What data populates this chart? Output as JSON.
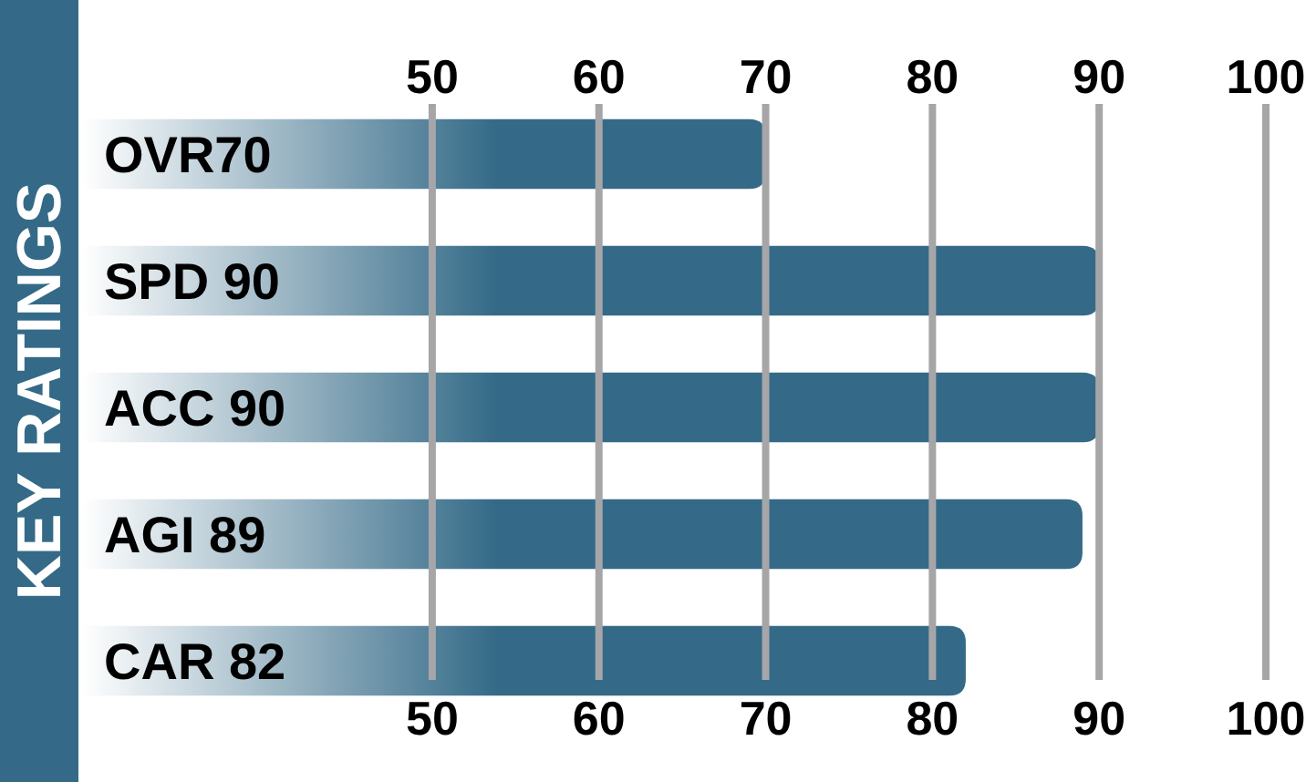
{
  "chart_data": {
    "type": "bar",
    "orientation": "horizontal",
    "title": "KEY RATINGS",
    "categories": [
      "OVR70",
      "SPD 90",
      "ACC 90",
      "AGI 89",
      "CAR 82"
    ],
    "values": [
      70,
      90,
      90,
      89,
      82
    ],
    "color": "#346a87",
    "xlim": [
      29,
      100
    ],
    "xticks": [
      50,
      60,
      70,
      80,
      90,
      100
    ],
    "x2lim": [
      29,
      100
    ],
    "x2ticks": [
      50,
      60,
      70,
      80,
      90,
      100
    ],
    "grid": "x"
  }
}
